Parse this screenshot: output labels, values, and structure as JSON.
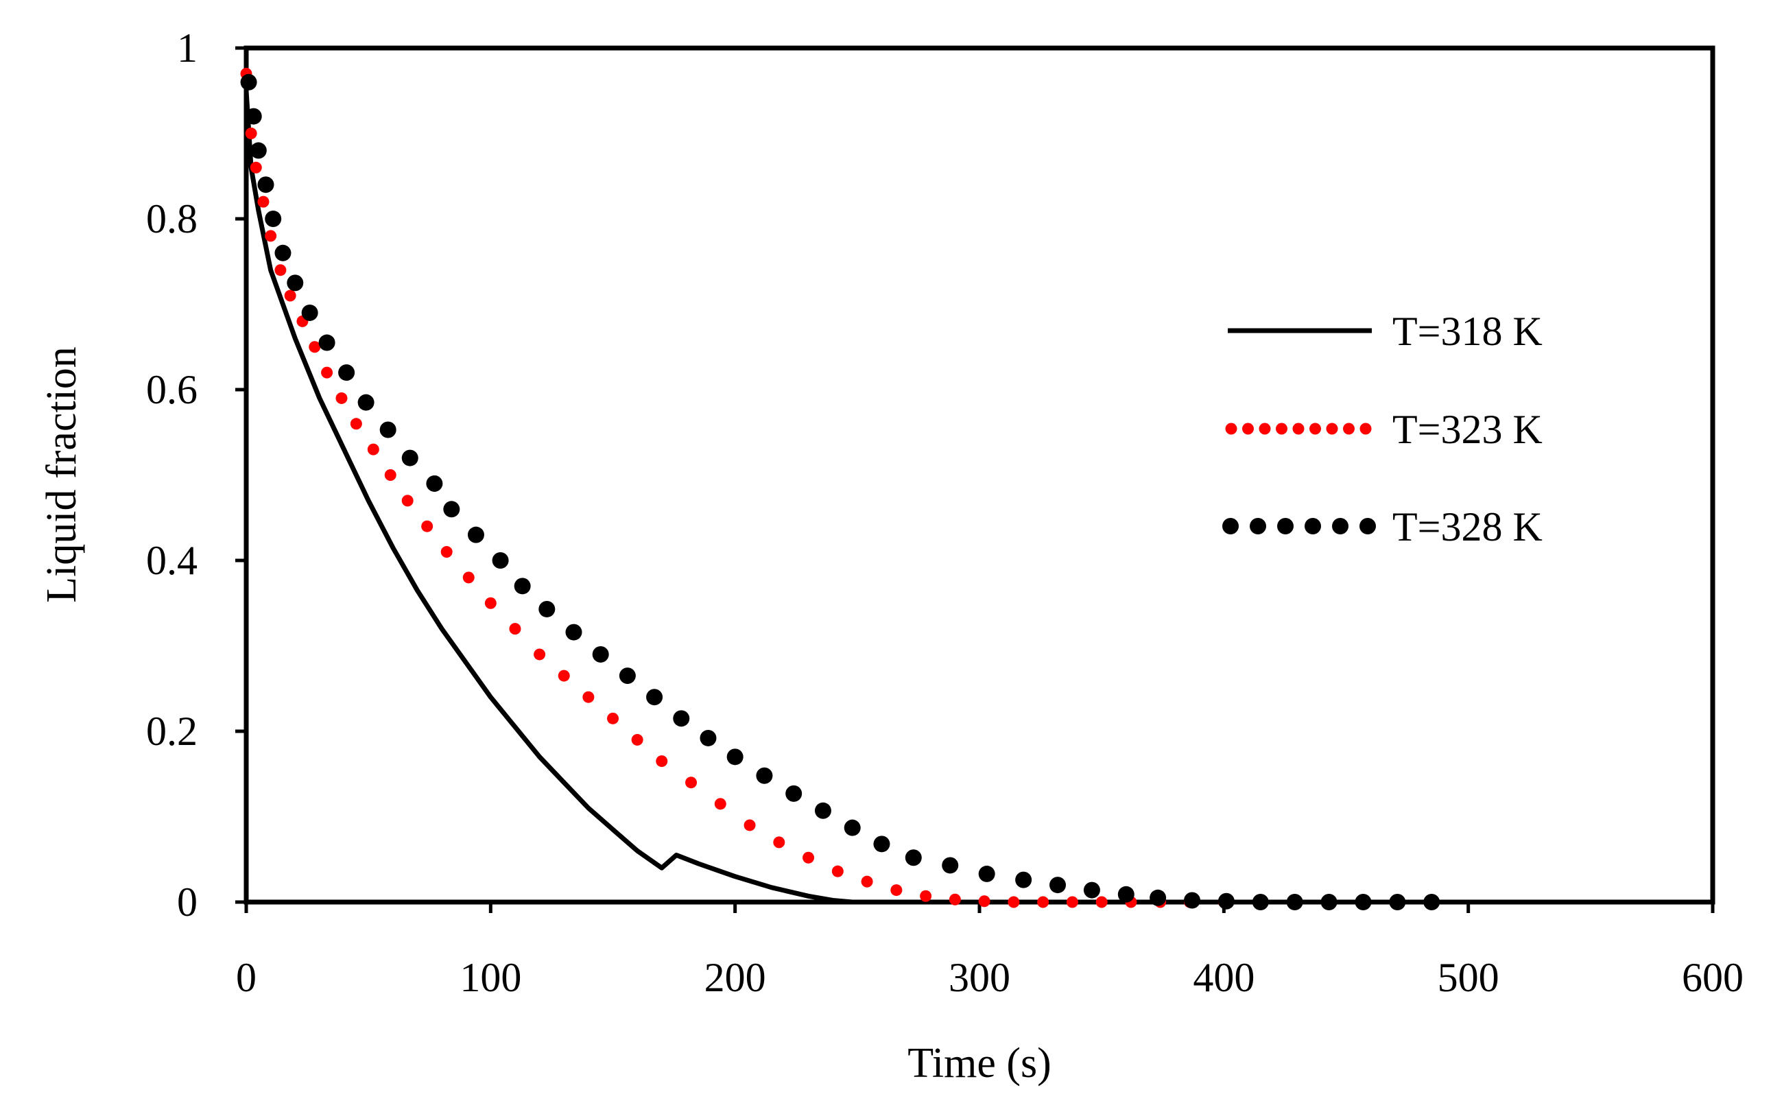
{
  "chart_data": {
    "type": "line",
    "title": "",
    "xlabel": "Time (s)",
    "ylabel": "Liquid fraction",
    "xlim": [
      0,
      600
    ],
    "ylim": [
      0,
      1
    ],
    "x_ticks": [
      0,
      100,
      200,
      300,
      400,
      500,
      600
    ],
    "y_ticks": [
      0,
      0.2,
      0.4,
      0.6,
      0.8,
      1
    ],
    "x_tick_labels": [
      "0",
      "100",
      "200",
      "300",
      "400",
      "500",
      "600"
    ],
    "y_tick_labels": [
      "0",
      "0.2",
      "0.4",
      "0.6",
      "0.8",
      "1"
    ],
    "grid": false,
    "legend_position": "right-middle",
    "series": [
      {
        "name": "T=318 K",
        "style": "solid",
        "color": "#000000",
        "x": [
          0,
          2,
          5,
          10,
          15,
          20,
          30,
          40,
          50,
          60,
          70,
          80,
          90,
          100,
          110,
          120,
          130,
          140,
          150,
          160,
          170,
          176,
          185,
          200,
          215,
          230,
          240,
          248,
          260
        ],
        "y": [
          0.95,
          0.86,
          0.81,
          0.74,
          0.7,
          0.66,
          0.59,
          0.53,
          0.47,
          0.415,
          0.365,
          0.32,
          0.28,
          0.24,
          0.205,
          0.17,
          0.14,
          0.11,
          0.085,
          0.06,
          0.04,
          0.055,
          0.045,
          0.03,
          0.017,
          0.007,
          0.002,
          0.0,
          0.0
        ]
      },
      {
        "name": "T=323 K",
        "style": "dotted",
        "color": "#ff0000",
        "x": [
          0,
          2,
          4,
          7,
          10,
          14,
          18,
          23,
          28,
          33,
          39,
          45,
          52,
          59,
          66,
          74,
          82,
          91,
          100,
          110,
          120,
          130,
          140,
          150,
          160,
          170,
          182,
          194,
          206,
          218,
          230,
          242,
          254,
          266,
          278,
          290,
          302,
          314,
          326,
          338,
          350,
          362,
          374,
          386,
          400
        ],
        "y": [
          0.97,
          0.9,
          0.86,
          0.82,
          0.78,
          0.74,
          0.71,
          0.68,
          0.65,
          0.62,
          0.59,
          0.56,
          0.53,
          0.5,
          0.47,
          0.44,
          0.41,
          0.38,
          0.35,
          0.32,
          0.29,
          0.265,
          0.24,
          0.215,
          0.19,
          0.165,
          0.14,
          0.115,
          0.09,
          0.07,
          0.052,
          0.036,
          0.024,
          0.014,
          0.007,
          0.003,
          0.001,
          0.0,
          0.0,
          0.0,
          0.0,
          0.0,
          0.0,
          0.0,
          0.0
        ]
      },
      {
        "name": "T=328 K",
        "style": "dots",
        "color": "#000000",
        "x": [
          1,
          3,
          5,
          8,
          11,
          15,
          20,
          26,
          33,
          41,
          49,
          58,
          67,
          77,
          84,
          94,
          104,
          113,
          123,
          134,
          145,
          156,
          167,
          178,
          189,
          200,
          212,
          224,
          236,
          248,
          260,
          273,
          288,
          303,
          318,
          332,
          346,
          360,
          373,
          387,
          401,
          415,
          429,
          443,
          457,
          471,
          485
        ],
        "y": [
          0.96,
          0.92,
          0.88,
          0.84,
          0.8,
          0.76,
          0.725,
          0.69,
          0.655,
          0.62,
          0.585,
          0.553,
          0.52,
          0.49,
          0.46,
          0.43,
          0.4,
          0.37,
          0.343,
          0.316,
          0.29,
          0.265,
          0.24,
          0.215,
          0.192,
          0.17,
          0.148,
          0.127,
          0.107,
          0.087,
          0.068,
          0.052,
          0.043,
          0.033,
          0.026,
          0.02,
          0.014,
          0.009,
          0.005,
          0.002,
          0.001,
          0.0,
          0.0,
          0.0,
          0.0,
          0.0,
          0.0
        ]
      }
    ]
  }
}
